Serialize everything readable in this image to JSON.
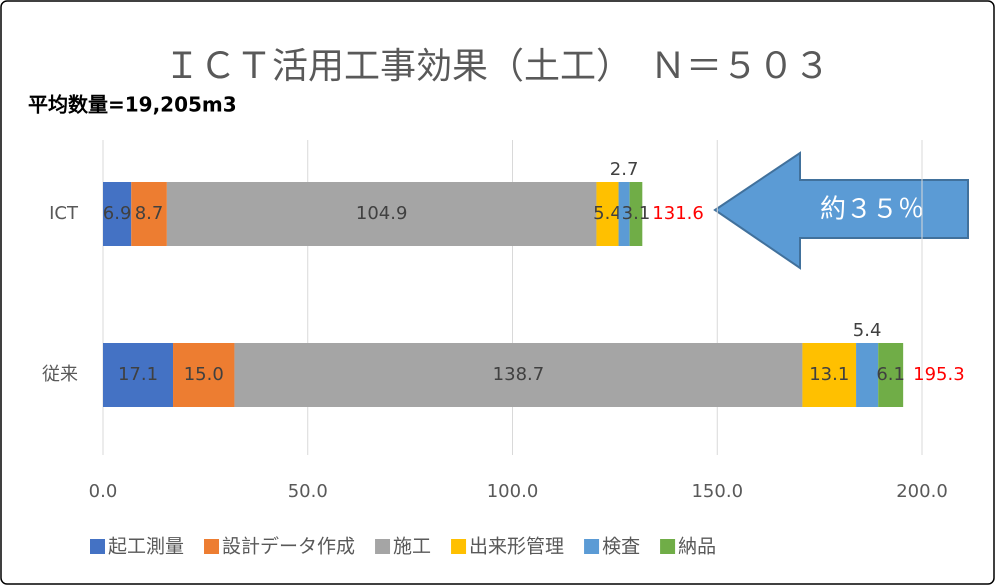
{
  "chart_data": {
    "type": "stacked-bar-horizontal",
    "title": "ＩＣＴ活用工事効果（土工）　Ｎ＝５０３",
    "subtitle": "平均数量=19,205m3",
    "categories": [
      "ICT",
      "従来"
    ],
    "series": [
      {
        "name": "起工測量",
        "color": "#4472c4",
        "values": [
          6.9,
          17.1
        ]
      },
      {
        "name": "設計データ作成",
        "color": "#ed7d31",
        "values": [
          8.7,
          15.0
        ],
        "value_labels": [
          "8.7",
          "15.0"
        ]
      },
      {
        "name": "施工",
        "color": "#a5a5a5",
        "values": [
          104.9,
          138.7
        ]
      },
      {
        "name": "出来形管理",
        "color": "#ffc000",
        "values": [
          5.4,
          13.1
        ]
      },
      {
        "name": "検査",
        "color": "#5b9bd5",
        "values": [
          2.7,
          5.4
        ]
      },
      {
        "name": "納品",
        "color": "#70ad47",
        "values": [
          3.1,
          6.1
        ]
      }
    ],
    "totals": {
      "color": "#ff0000",
      "values": [
        131.6,
        195.3
      ]
    },
    "annotation": {
      "text": "約３５％",
      "color": "#5b9bd5"
    },
    "xlim": [
      0,
      200
    ],
    "xticks": [
      {
        "value": 0,
        "label": "0.0"
      },
      {
        "value": 50,
        "label": "50.0"
      },
      {
        "value": 100,
        "label": "100.0"
      },
      {
        "value": 150,
        "label": "150.0"
      },
      {
        "value": 200,
        "label": "200.0"
      }
    ],
    "grid": true,
    "legend": "bottom"
  }
}
